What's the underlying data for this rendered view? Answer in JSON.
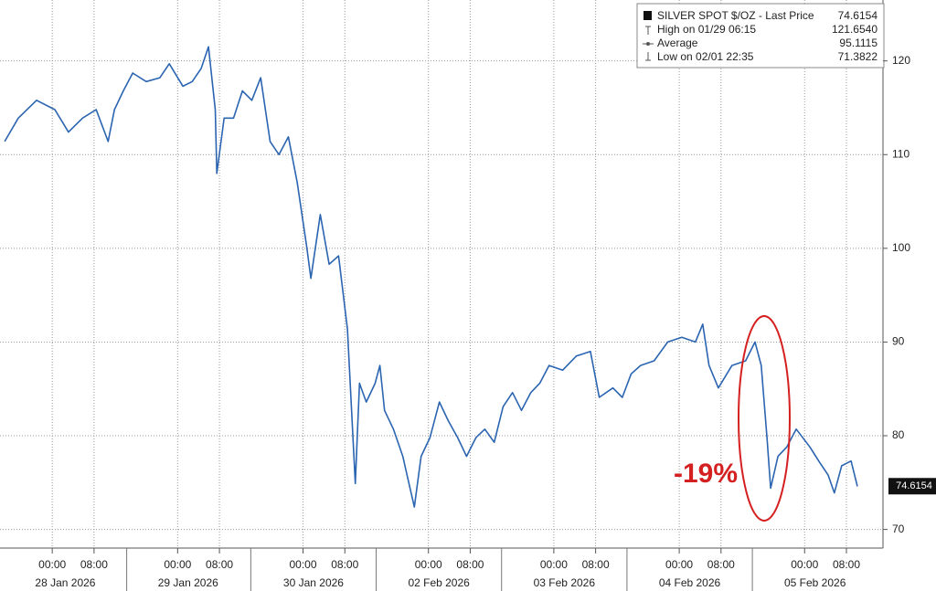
{
  "chart_data": {
    "type": "line",
    "x": [
      0.9,
      3.5,
      7.0,
      10.5,
      13.1,
      15.8,
      18.4,
      20.7,
      21.9,
      23.6,
      25.4,
      28.0,
      30.6,
      32.4,
      35.0,
      36.8,
      38.5,
      39.9,
      41.2,
      41.5,
      42.9,
      44.7,
      46.4,
      48.2,
      49.9,
      51.7,
      53.4,
      55.2,
      56.9,
      58.7,
      59.5,
      61.3,
      63.0,
      64.8,
      66.5,
      68.0,
      68.8,
      70.1,
      71.8,
      72.7,
      73.6,
      75.3,
      77.1,
      77.9,
      79.3,
      80.6,
      82.3,
      84.1,
      85.8,
      87.6,
      89.3,
      91.1,
      92.8,
      94.6,
      96.3,
      98.1,
      99.8,
      101.6,
      103.3,
      105.1,
      107.7,
      110.3,
      113.0,
      114.7,
      117.3,
      119.1,
      120.8,
      122.6,
      125.2,
      127.8,
      130.5,
      133.1,
      134.5,
      135.7,
      137.5,
      140.1,
      142.7,
      144.5,
      145.7,
      146.8,
      147.5,
      148.9,
      150.6,
      152.4,
      155.0,
      156.7,
      158.5,
      159.7,
      161.1,
      162.9,
      164.1
    ],
    "series": [
      {
        "name": "SILVER SPOT $/OZ - Last Price",
        "color": "#2b64b0",
        "values": [
          111.4,
          113.9,
          115.8,
          114.8,
          112.4,
          113.9,
          114.8,
          111.4,
          114.8,
          116.8,
          118.7,
          117.8,
          118.2,
          119.7,
          117.3,
          117.8,
          119.2,
          121.5,
          114.8,
          108.0,
          113.9,
          113.9,
          116.8,
          115.8,
          118.2,
          111.4,
          110.0,
          111.9,
          107.0,
          100.2,
          96.8,
          103.6,
          98.3,
          99.2,
          91.4,
          74.9,
          85.6,
          83.6,
          85.6,
          87.5,
          82.7,
          80.7,
          77.8,
          75.8,
          72.4,
          77.8,
          79.8,
          83.6,
          81.6,
          79.8,
          77.8,
          79.8,
          80.7,
          79.3,
          83.1,
          84.6,
          82.7,
          84.6,
          85.6,
          87.5,
          87.0,
          88.5,
          89.0,
          84.1,
          85.1,
          84.1,
          86.6,
          87.5,
          88.0,
          90.0,
          90.5,
          90.0,
          91.9,
          87.5,
          85.1,
          87.5,
          88.0,
          90.0,
          87.5,
          79.8,
          74.4,
          77.8,
          78.8,
          80.7,
          78.8,
          77.3,
          75.8,
          73.9,
          76.8,
          77.3,
          74.6
        ]
      }
    ],
    "last_value": 74.6154,
    "stats": [
      {
        "label": "High on 01/29 06:15",
        "value": 121.654,
        "value_label": "121.6540"
      },
      {
        "label": "Average",
        "value": 95.1115,
        "value_label": "95.1115"
      },
      {
        "label": "Low on 02/01 22:35",
        "value": 71.3822,
        "value_label": "71.3822"
      }
    ],
    "annotation": "-19%",
    "xlim": [
      0,
      169
    ],
    "ylim": [
      68.5,
      126.5
    ],
    "yticks": [
      70,
      80,
      90,
      100,
      110,
      120
    ],
    "xticks": [
      {
        "value": 10,
        "label": "00:00"
      },
      {
        "value": 18,
        "label": "08:00"
      },
      {
        "value": 34,
        "label": "00:00"
      },
      {
        "value": 42,
        "label": "08:00"
      },
      {
        "value": 58,
        "label": "00:00"
      },
      {
        "value": 66,
        "label": "08:00"
      },
      {
        "value": 82,
        "label": "00:00"
      },
      {
        "value": 90,
        "label": "08:00"
      },
      {
        "value": 106,
        "label": "00:00"
      },
      {
        "value": 114,
        "label": "08:00"
      },
      {
        "value": 130,
        "label": "00:00"
      },
      {
        "value": 138,
        "label": "08:00"
      },
      {
        "value": 154,
        "label": "00:00"
      },
      {
        "value": 162,
        "label": "08:00"
      }
    ],
    "date_labels": [
      {
        "value": 12.5,
        "label": "28 Jan 2026"
      },
      {
        "value": 36,
        "label": "29 Jan 2026"
      },
      {
        "value": 60,
        "label": "30 Jan 2026"
      },
      {
        "value": 84,
        "label": "02 Feb 2026"
      },
      {
        "value": 108,
        "label": "03 Feb 2026"
      },
      {
        "value": 132,
        "label": "04 Feb 2026"
      },
      {
        "value": 156,
        "label": "05 Feb 2026"
      }
    ],
    "grid": true
  }
}
